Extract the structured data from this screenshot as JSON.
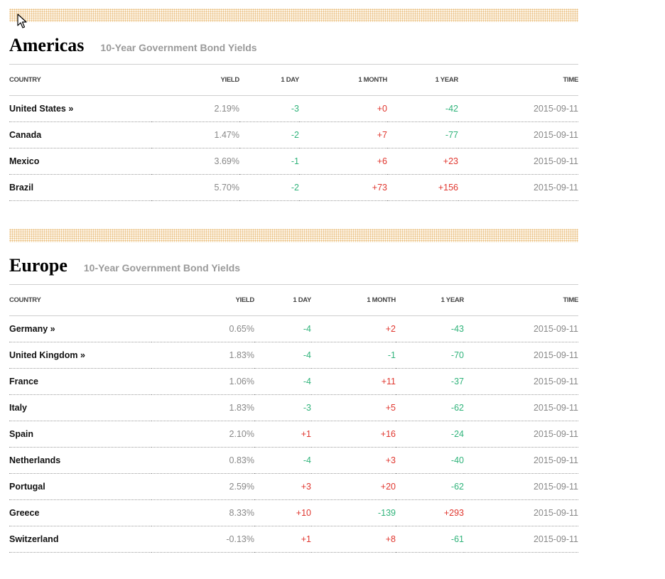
{
  "colors": {
    "down": "#2fb37a",
    "up": "#e0362e",
    "accent_dots": "#e8b874"
  },
  "americas": {
    "title": "Americas",
    "subtitle": "10-Year Government Bond Yields",
    "headers": {
      "country": "COUNTRY",
      "yield": "YIELD",
      "day": "1 DAY",
      "month": "1 MONTH",
      "year": "1 YEAR",
      "time": "TIME"
    },
    "rows": [
      {
        "country": "United States »",
        "yield": "2.19%",
        "day": "-3",
        "month": "+0",
        "year": "-42",
        "time": "2015-09-11"
      },
      {
        "country": "Canada",
        "yield": "1.47%",
        "day": "-2",
        "month": "+7",
        "year": "-77",
        "time": "2015-09-11"
      },
      {
        "country": "Mexico",
        "yield": "3.69%",
        "day": "-1",
        "month": "+6",
        "year": "+23",
        "time": "2015-09-11"
      },
      {
        "country": "Brazil",
        "yield": "5.70%",
        "day": "-2",
        "month": "+73",
        "year": "+156",
        "time": "2015-09-11"
      }
    ]
  },
  "europe": {
    "title": "Europe",
    "subtitle": "10-Year Government Bond Yields",
    "headers": {
      "country": "COUNTRY",
      "yield": "YIELD",
      "day": "1 DAY",
      "month": "1 MONTH",
      "year": "1 YEAR",
      "time": "TIME"
    },
    "rows": [
      {
        "country": "Germany »",
        "yield": "0.65%",
        "day": "-4",
        "month": "+2",
        "year": "-43",
        "time": "2015-09-11"
      },
      {
        "country": "United Kingdom »",
        "yield": "1.83%",
        "day": "-4",
        "month": "-1",
        "year": "-70",
        "time": "2015-09-11"
      },
      {
        "country": "France",
        "yield": "1.06%",
        "day": "-4",
        "month": "+11",
        "year": "-37",
        "time": "2015-09-11"
      },
      {
        "country": "Italy",
        "yield": "1.83%",
        "day": "-3",
        "month": "+5",
        "year": "-62",
        "time": "2015-09-11"
      },
      {
        "country": "Spain",
        "yield": "2.10%",
        "day": "+1",
        "month": "+16",
        "year": "-24",
        "time": "2015-09-11"
      },
      {
        "country": "Netherlands",
        "yield": "0.83%",
        "day": "-4",
        "month": "+3",
        "year": "-40",
        "time": "2015-09-11"
      },
      {
        "country": "Portugal",
        "yield": "2.59%",
        "day": "+3",
        "month": "+20",
        "year": "-62",
        "time": "2015-09-11"
      },
      {
        "country": "Greece",
        "yield": "8.33%",
        "day": "+10",
        "month": "-139",
        "year": "+293",
        "time": "2015-09-11"
      },
      {
        "country": "Switzerland",
        "yield": "-0.13%",
        "day": "+1",
        "month": "+8",
        "year": "-61",
        "time": "2015-09-11"
      }
    ]
  }
}
